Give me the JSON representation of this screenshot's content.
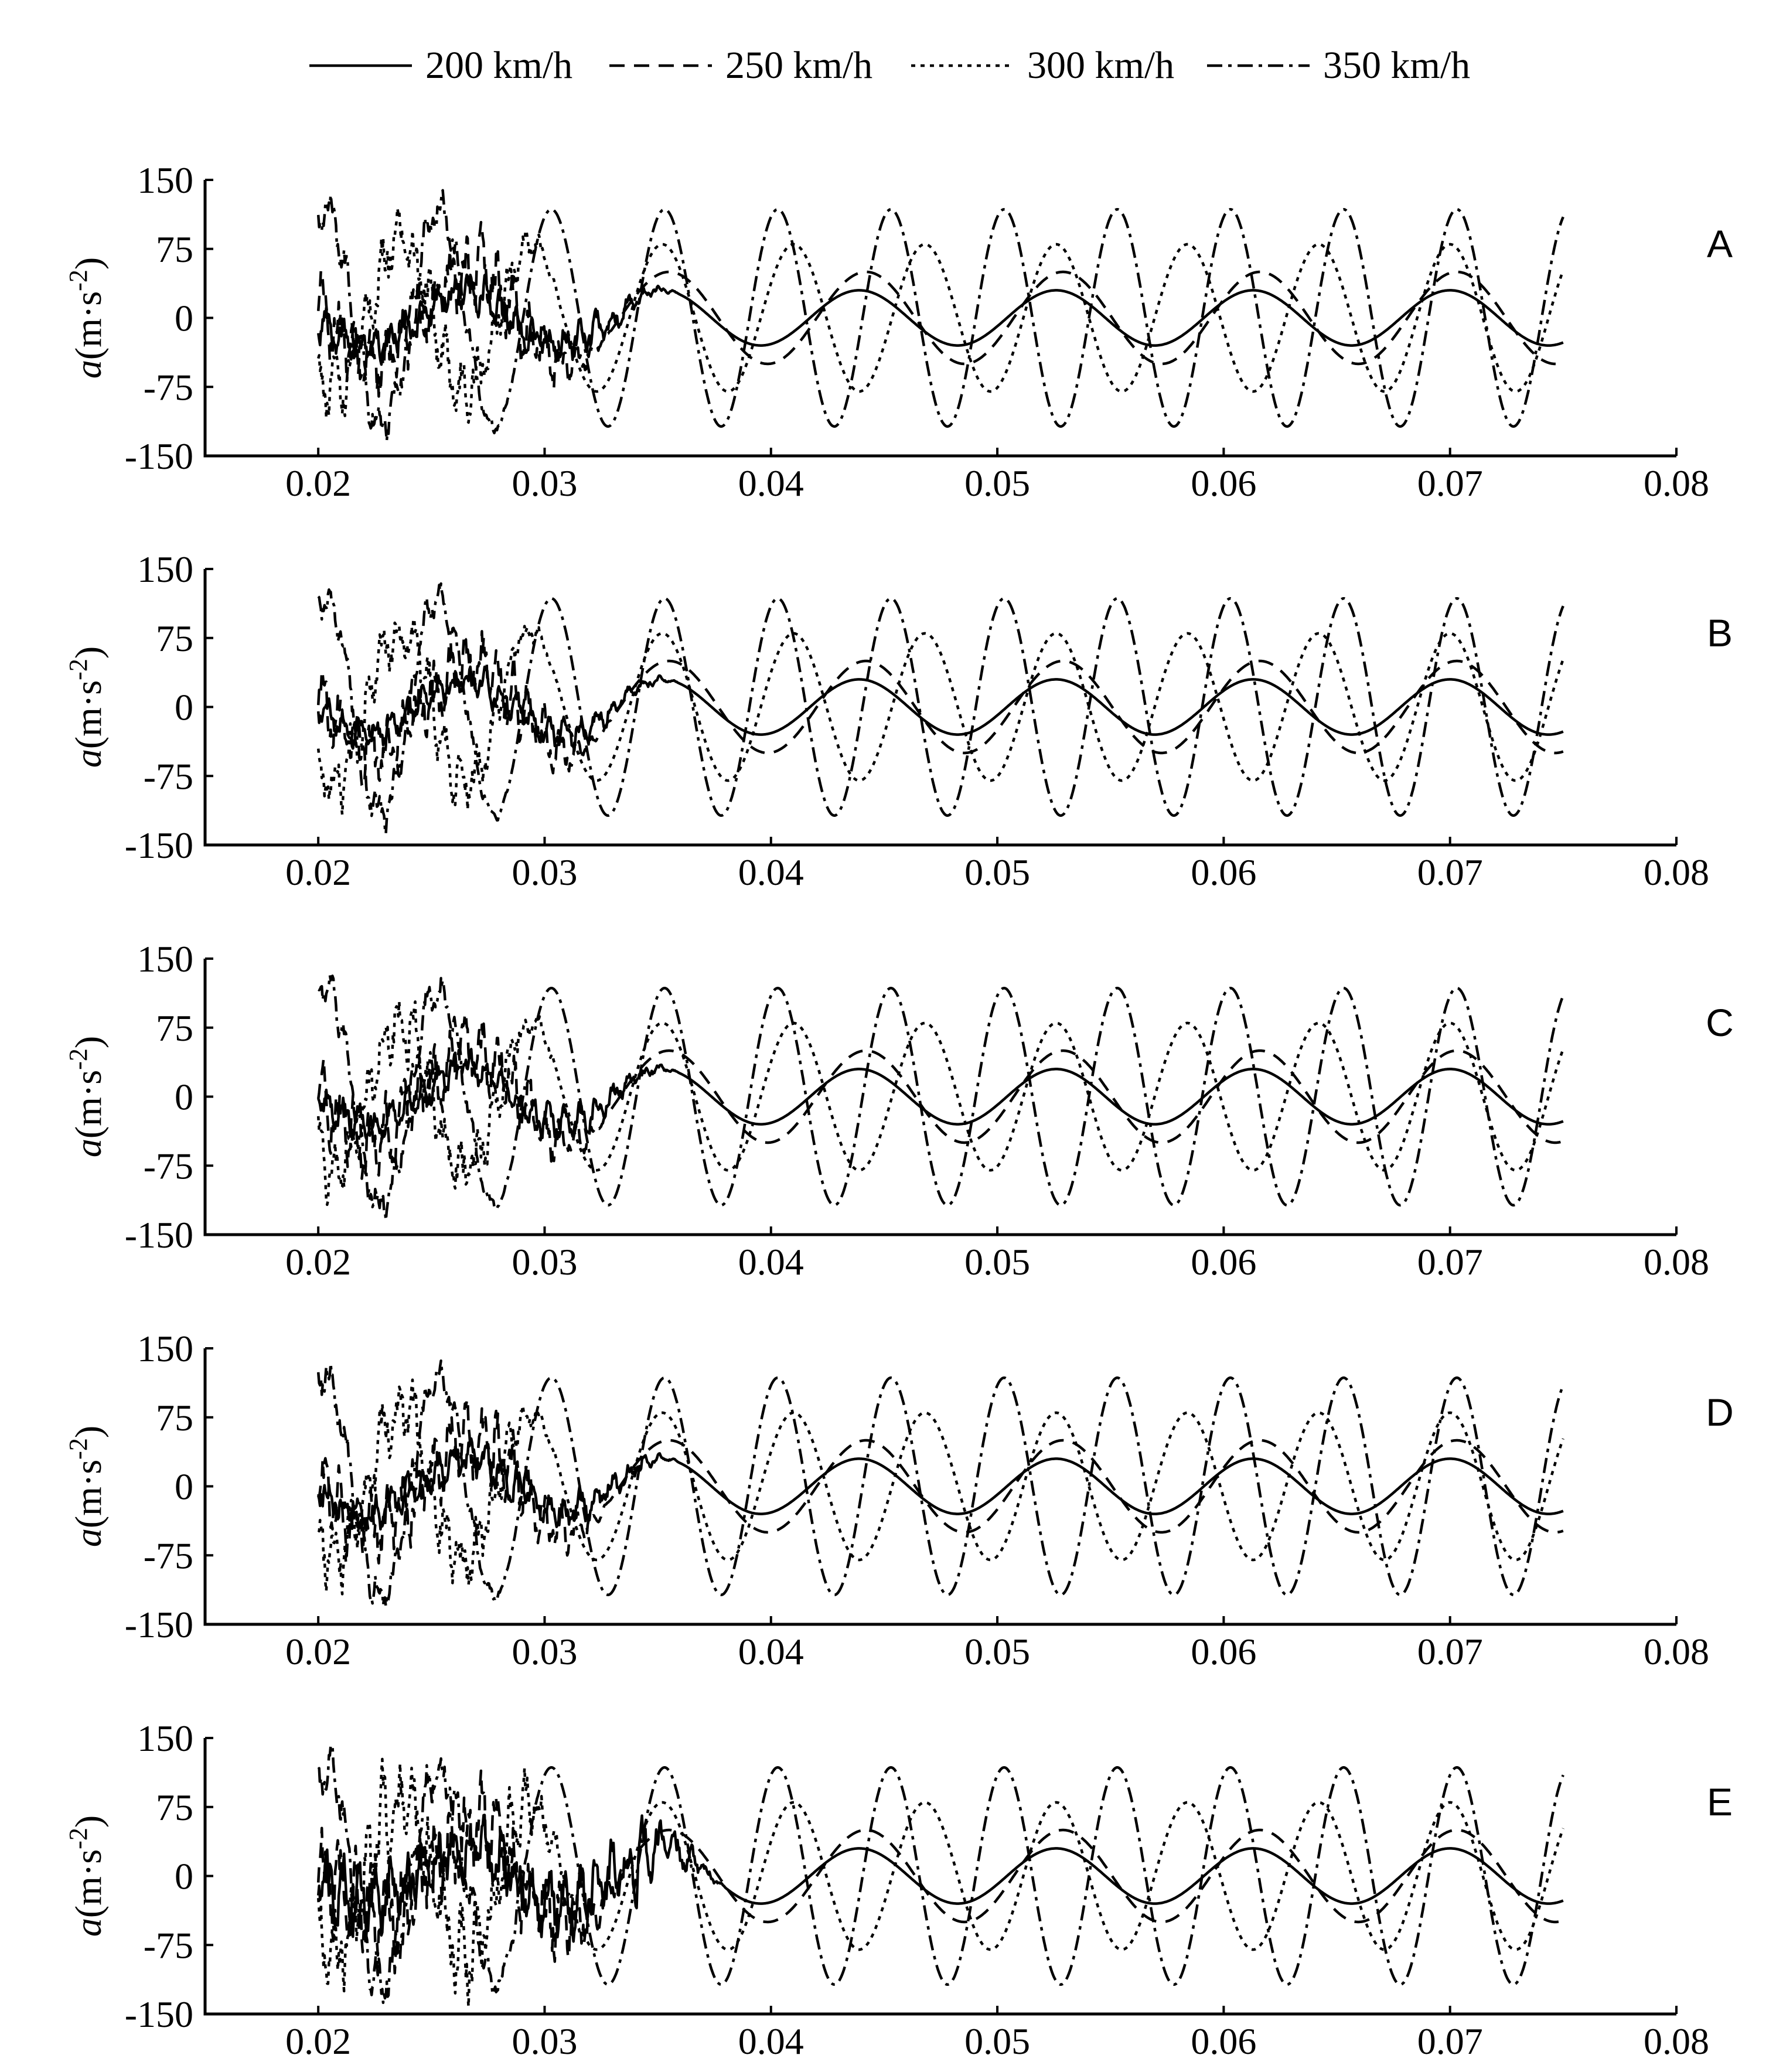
{
  "figure": {
    "legend": [
      {
        "label": "200 km/h",
        "style": "solid"
      },
      {
        "label": "250 km/h",
        "style": "dashed"
      },
      {
        "label": "300 km/h",
        "style": "dotted"
      },
      {
        "label": "350 km/h",
        "style": "dashdot"
      }
    ],
    "ylabel_italic": "a",
    "ylabel_rest": "(m·s",
    "ylabel_sup": "-2",
    "ylabel_close": ")"
  },
  "chart_data": [
    {
      "type": "line",
      "panel": "A",
      "xlim": [
        0.015,
        0.08
      ],
      "ylim": [
        -150,
        150
      ],
      "xticks": [
        "0.02",
        "0.03",
        "0.04",
        "0.05",
        "0.06",
        "0.07",
        "0.08"
      ],
      "yticks": [
        "150",
        "75",
        "0",
        "-75",
        "-150"
      ],
      "series": [
        {
          "name": "200 km/h",
          "x_start": 0.02,
          "x_end": 0.075,
          "amplitude": 30,
          "period": 0.0087,
          "phase_peak": 0.0352,
          "noise_amplitude": 22,
          "noise_until": 0.036
        },
        {
          "name": "250 km/h",
          "x_start": 0.02,
          "x_end": 0.075,
          "amplitude": 50,
          "period": 0.0087,
          "phase_peak": 0.0355,
          "noise_amplitude": 45,
          "noise_until": 0.033
        },
        {
          "name": "300 km/h",
          "x_start": 0.02,
          "x_end": 0.075,
          "amplitude": 80,
          "period": 0.0058,
          "phase_peak": 0.0352,
          "noise_amplitude": 40,
          "noise_until": 0.031
        },
        {
          "name": "350 km/h",
          "x_start": 0.02,
          "x_end": 0.075,
          "amplitude": 118,
          "period": 0.005,
          "phase_peak": 0.0403,
          "noise_amplitude": 25,
          "noise_until": 0.029
        }
      ]
    },
    {
      "type": "line",
      "panel": "B",
      "xlim": [
        0.015,
        0.08
      ],
      "ylim": [
        -150,
        150
      ],
      "xticks": [
        "0.02",
        "0.03",
        "0.04",
        "0.05",
        "0.06",
        "0.07",
        "0.08"
      ],
      "yticks": [
        "150",
        "75",
        "0",
        "-75",
        "-150"
      ],
      "series": [
        {
          "name": "200 km/h",
          "x_start": 0.02,
          "x_end": 0.075,
          "amplitude": 30,
          "period": 0.0087,
          "phase_peak": 0.0352,
          "noise_amplitude": 18,
          "noise_until": 0.036
        },
        {
          "name": "250 km/h",
          "x_start": 0.02,
          "x_end": 0.075,
          "amplitude": 50,
          "period": 0.0087,
          "phase_peak": 0.0355,
          "noise_amplitude": 40,
          "noise_until": 0.033
        },
        {
          "name": "300 km/h",
          "x_start": 0.02,
          "x_end": 0.075,
          "amplitude": 80,
          "period": 0.0058,
          "phase_peak": 0.0352,
          "noise_amplitude": 35,
          "noise_until": 0.031
        },
        {
          "name": "350 km/h",
          "x_start": 0.02,
          "x_end": 0.075,
          "amplitude": 118,
          "period": 0.005,
          "phase_peak": 0.0403,
          "noise_amplitude": 22,
          "noise_until": 0.029
        }
      ]
    },
    {
      "type": "line",
      "panel": "C",
      "xlim": [
        0.015,
        0.08
      ],
      "ylim": [
        -150,
        150
      ],
      "xticks": [
        "0.02",
        "0.03",
        "0.04",
        "0.05",
        "0.06",
        "0.07",
        "0.08"
      ],
      "yticks": [
        "150",
        "75",
        "0",
        "-75",
        "-150"
      ],
      "series": [
        {
          "name": "200 km/h",
          "x_start": 0.02,
          "x_end": 0.075,
          "amplitude": 30,
          "period": 0.0087,
          "phase_peak": 0.0352,
          "noise_amplitude": 20,
          "noise_until": 0.036
        },
        {
          "name": "250 km/h",
          "x_start": 0.02,
          "x_end": 0.075,
          "amplitude": 50,
          "period": 0.0087,
          "phase_peak": 0.0355,
          "noise_amplitude": 42,
          "noise_until": 0.033
        },
        {
          "name": "300 km/h",
          "x_start": 0.02,
          "x_end": 0.075,
          "amplitude": 80,
          "period": 0.0058,
          "phase_peak": 0.0352,
          "noise_amplitude": 38,
          "noise_until": 0.031
        },
        {
          "name": "350 km/h",
          "x_start": 0.02,
          "x_end": 0.075,
          "amplitude": 118,
          "period": 0.005,
          "phase_peak": 0.0403,
          "noise_amplitude": 24,
          "noise_until": 0.029
        }
      ]
    },
    {
      "type": "line",
      "panel": "D",
      "xlim": [
        0.015,
        0.08
      ],
      "ylim": [
        -150,
        150
      ],
      "xticks": [
        "0.02",
        "0.03",
        "0.04",
        "0.05",
        "0.06",
        "0.07",
        "0.08"
      ],
      "yticks": [
        "150",
        "75",
        "0",
        "-75",
        "-150"
      ],
      "series": [
        {
          "name": "200 km/h",
          "x_start": 0.02,
          "x_end": 0.075,
          "amplitude": 30,
          "period": 0.0087,
          "phase_peak": 0.0352,
          "noise_amplitude": 22,
          "noise_until": 0.036
        },
        {
          "name": "250 km/h",
          "x_start": 0.02,
          "x_end": 0.075,
          "amplitude": 50,
          "period": 0.0087,
          "phase_peak": 0.0355,
          "noise_amplitude": 45,
          "noise_until": 0.033
        },
        {
          "name": "300 km/h",
          "x_start": 0.02,
          "x_end": 0.075,
          "amplitude": 80,
          "period": 0.0058,
          "phase_peak": 0.0352,
          "noise_amplitude": 40,
          "noise_until": 0.031
        },
        {
          "name": "350 km/h",
          "x_start": 0.02,
          "x_end": 0.075,
          "amplitude": 118,
          "period": 0.005,
          "phase_peak": 0.0403,
          "noise_amplitude": 25,
          "noise_until": 0.029
        }
      ]
    },
    {
      "type": "line",
      "panel": "E",
      "xlim": [
        0.015,
        0.08
      ],
      "ylim": [
        -150,
        150
      ],
      "xticks": [
        "0.02",
        "0.03",
        "0.04",
        "0.05",
        "0.06",
        "0.07",
        "0.08"
      ],
      "yticks": [
        "150",
        "75",
        "0",
        "-75",
        "-150"
      ],
      "series": [
        {
          "name": "200 km/h",
          "x_start": 0.02,
          "x_end": 0.075,
          "amplitude": 30,
          "period": 0.0087,
          "phase_peak": 0.0352,
          "noise_amplitude": 40,
          "noise_until": 0.038
        },
        {
          "name": "250 km/h",
          "x_start": 0.02,
          "x_end": 0.075,
          "amplitude": 50,
          "period": 0.0087,
          "phase_peak": 0.0355,
          "noise_amplitude": 60,
          "noise_until": 0.034
        },
        {
          "name": "300 km/h",
          "x_start": 0.02,
          "x_end": 0.075,
          "amplitude": 80,
          "period": 0.0058,
          "phase_peak": 0.0352,
          "noise_amplitude": 55,
          "noise_until": 0.032
        },
        {
          "name": "350 km/h",
          "x_start": 0.02,
          "x_end": 0.075,
          "amplitude": 118,
          "period": 0.005,
          "phase_peak": 0.0403,
          "noise_amplitude": 35,
          "noise_until": 0.03
        }
      ]
    }
  ]
}
